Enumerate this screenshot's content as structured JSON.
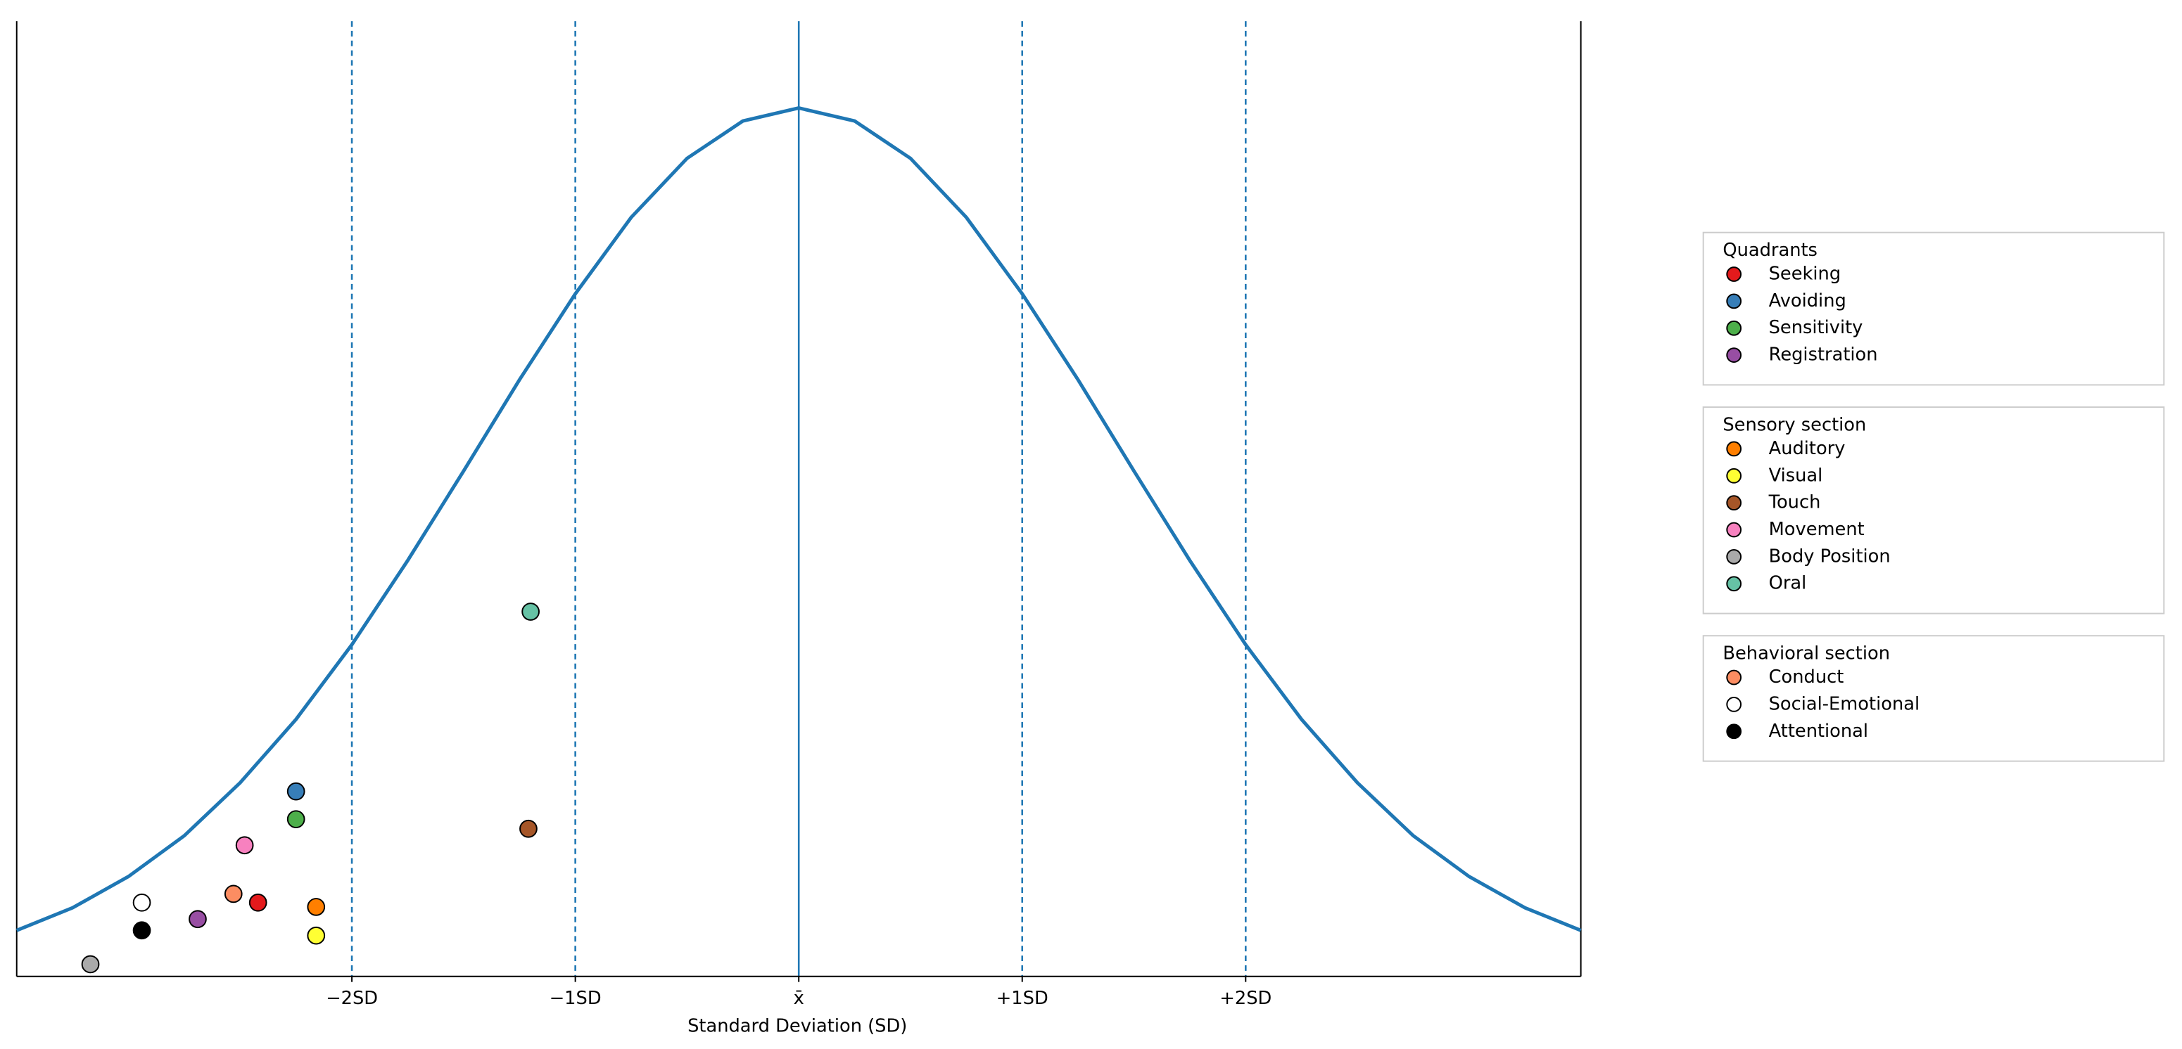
{
  "chart_data": {
    "type": "scatter",
    "xlabel": "Standard Deviation (SD)",
    "xlim": [
      -3.5,
      3.5
    ],
    "ylim": [
      0,
      1.1
    ],
    "xticks": [
      {
        "value": -2,
        "label": "−2SD"
      },
      {
        "value": -1,
        "label": "−1SD"
      },
      {
        "value": 0,
        "label": "x̄"
      },
      {
        "value": 1,
        "label": "+1SD"
      },
      {
        "value": 2,
        "label": "+2SD"
      }
    ],
    "curve": {
      "color": "#1f77b4",
      "x": [
        -3.5,
        -3.25,
        -3,
        -2.75,
        -2.5,
        -2.25,
        -2,
        -1.75,
        -1.5,
        -1.25,
        -1,
        -0.75,
        -0.5,
        -0.25,
        0,
        0.25,
        0.5,
        0.75,
        1,
        1.25,
        1.5,
        1.75,
        2,
        2.25,
        2.5,
        2.75,
        3,
        3.25,
        3.5
      ],
      "values": [
        0.053,
        0.079,
        0.115,
        0.162,
        0.223,
        0.296,
        0.382,
        0.479,
        0.582,
        0.687,
        0.786,
        0.874,
        0.942,
        0.985,
        1,
        0.985,
        0.942,
        0.874,
        0.786,
        0.687,
        0.582,
        0.479,
        0.382,
        0.296,
        0.223,
        0.162,
        0.115,
        0.079,
        0.053
      ]
    },
    "groups": [
      {
        "title": "Quadrants",
        "series": [
          {
            "name": "Seeking",
            "color": "#e41a1c",
            "x": [
              -2.42
            ],
            "values": [
              0.085
            ]
          },
          {
            "name": "Avoiding",
            "color": "#377eb8",
            "x": [
              -2.25
            ],
            "values": [
              0.213
            ]
          },
          {
            "name": "Sensitivity",
            "color": "#4daf4a",
            "x": [
              -2.25
            ],
            "values": [
              0.181
            ]
          },
          {
            "name": "Registration",
            "color": "#984ea3",
            "x": [
              -2.69
            ],
            "values": [
              0.066
            ]
          }
        ]
      },
      {
        "title": "Sensory section",
        "series": [
          {
            "name": "Auditory",
            "color": "#ff7f00",
            "x": [
              -2.16
            ],
            "values": [
              0.08
            ]
          },
          {
            "name": "Visual",
            "color": "#ffff33",
            "x": [
              -2.16
            ],
            "values": [
              0.047
            ]
          },
          {
            "name": "Touch",
            "color": "#a65628",
            "x": [
              -1.21
            ],
            "values": [
              0.17
            ]
          },
          {
            "name": "Movement",
            "color": "#f781bf",
            "x": [
              -2.48
            ],
            "values": [
              0.151
            ]
          },
          {
            "name": "Body Position",
            "color": "#aaaaaa",
            "x": [
              -3.17
            ],
            "values": [
              0.014
            ]
          },
          {
            "name": "Oral",
            "color": "#66c2a5",
            "x": [
              -1.2
            ],
            "values": [
              0.42
            ]
          }
        ]
      },
      {
        "title": "Behavioral section",
        "series": [
          {
            "name": "Conduct",
            "color": "#fc8d62",
            "x": [
              -2.53
            ],
            "values": [
              0.095
            ]
          },
          {
            "name": "Social-Emotional",
            "color": "#ffffff",
            "x": [
              -2.94
            ],
            "values": [
              0.085
            ]
          },
          {
            "name": "Attentional",
            "color": "#000000",
            "x": [
              -2.94
            ],
            "values": [
              0.053
            ]
          }
        ]
      }
    ]
  }
}
